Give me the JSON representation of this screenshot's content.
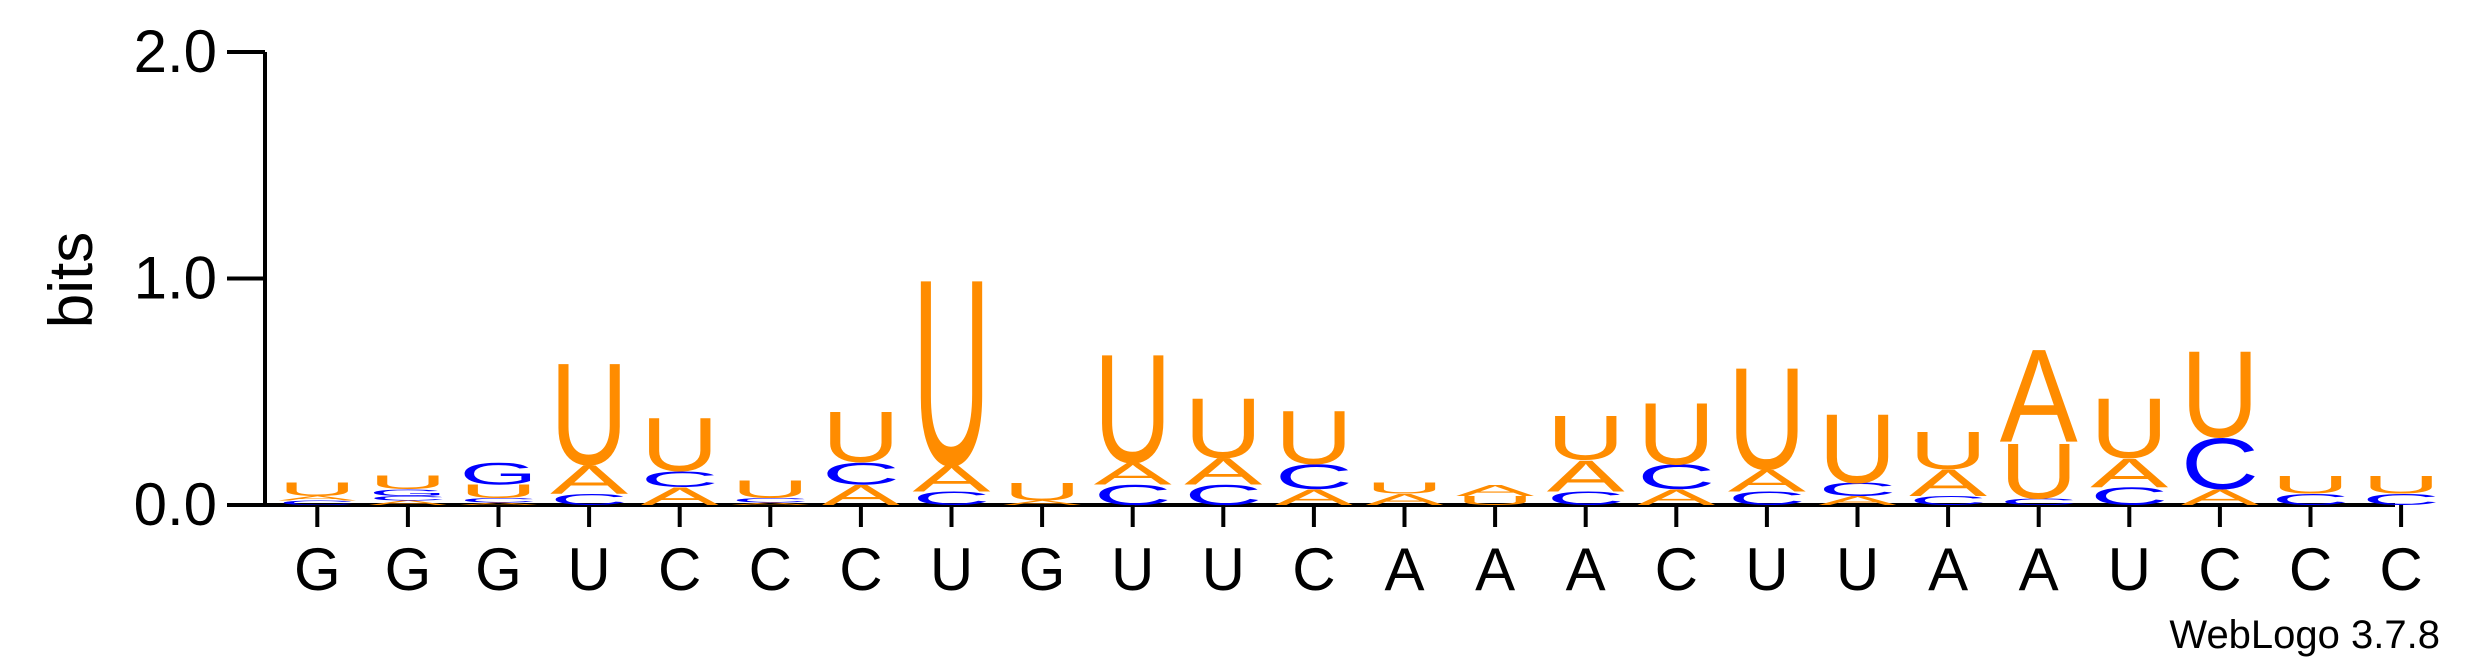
{
  "chart_data": {
    "type": "sequence-logo",
    "ylabel": "bits",
    "ylim": [
      0,
      2.0
    ],
    "y_ticks": [
      "0.0",
      "1.0",
      "2.0"
    ],
    "x_labels": [
      "G",
      "G",
      "G",
      "U",
      "C",
      "C",
      "C",
      "U",
      "G",
      "U",
      "U",
      "C",
      "A",
      "A",
      "A",
      "C",
      "U",
      "U",
      "A",
      "A",
      "U",
      "C",
      "C",
      "C"
    ],
    "colors": {
      "A": "#ff8c00",
      "U": "#ff8c00",
      "C": "#0000ff",
      "G": "#0000ff"
    },
    "positions": [
      [
        [
          "C",
          0.02
        ],
        [
          "A",
          0.02
        ],
        [
          "U",
          0.06
        ]
      ],
      [
        [
          "A",
          0.02
        ],
        [
          "C",
          0.02
        ],
        [
          "G",
          0.03
        ],
        [
          "U",
          0.06
        ]
      ],
      [
        [
          "A",
          0.01
        ],
        [
          "C",
          0.02
        ],
        [
          "U",
          0.06
        ],
        [
          "G",
          0.1
        ]
      ],
      [
        [
          "C",
          0.05
        ],
        [
          "A",
          0.13
        ],
        [
          "U",
          0.46
        ]
      ],
      [
        [
          "A",
          0.08
        ],
        [
          "C",
          0.07
        ],
        [
          "U",
          0.24
        ]
      ],
      [
        [
          "A",
          0.01
        ],
        [
          "C",
          0.02
        ],
        [
          "U",
          0.08
        ]
      ],
      [
        [
          "A",
          0.09
        ],
        [
          "C",
          0.1
        ],
        [
          "U",
          0.23
        ]
      ],
      [
        [
          "C",
          0.06
        ],
        [
          "A",
          0.12
        ],
        [
          "U",
          0.84
        ]
      ],
      [
        [
          "A",
          0.02
        ],
        [
          "U",
          0.08
        ]
      ],
      [
        [
          "C",
          0.09
        ],
        [
          "A",
          0.1
        ],
        [
          "U",
          0.49
        ]
      ],
      [
        [
          "C",
          0.09
        ],
        [
          "A",
          0.12
        ],
        [
          "U",
          0.27
        ]
      ],
      [
        [
          "A",
          0.07
        ],
        [
          "C",
          0.11
        ],
        [
          "U",
          0.24
        ]
      ],
      [
        [
          "A",
          0.05
        ],
        [
          "U",
          0.05
        ]
      ],
      [
        [
          "U",
          0.04
        ],
        [
          "A",
          0.05
        ]
      ],
      [
        [
          "C",
          0.06
        ],
        [
          "A",
          0.14
        ],
        [
          "U",
          0.2
        ]
      ],
      [
        [
          "A",
          0.07
        ],
        [
          "C",
          0.11
        ],
        [
          "U",
          0.28
        ]
      ],
      [
        [
          "C",
          0.06
        ],
        [
          "A",
          0.1
        ],
        [
          "U",
          0.46
        ]
      ],
      [
        [
          "A",
          0.04
        ],
        [
          "C",
          0.06
        ],
        [
          "U",
          0.31
        ]
      ],
      [
        [
          "C",
          0.04
        ],
        [
          "A",
          0.12
        ],
        [
          "U",
          0.17
        ]
      ],
      [
        [
          "C",
          0.03
        ],
        [
          "U",
          0.25
        ],
        [
          "A",
          0.42
        ]
      ],
      [
        [
          "C",
          0.08
        ],
        [
          "A",
          0.13
        ],
        [
          "U",
          0.27
        ]
      ],
      [
        [
          "A",
          0.07
        ],
        [
          "C",
          0.23
        ],
        [
          "U",
          0.39
        ]
      ],
      [
        [
          "C",
          0.05
        ],
        [
          "U",
          0.08
        ]
      ],
      [
        [
          "C",
          0.05
        ],
        [
          "U",
          0.08
        ]
      ]
    ]
  },
  "footer": {
    "credit": "WebLogo 3.7.8"
  }
}
